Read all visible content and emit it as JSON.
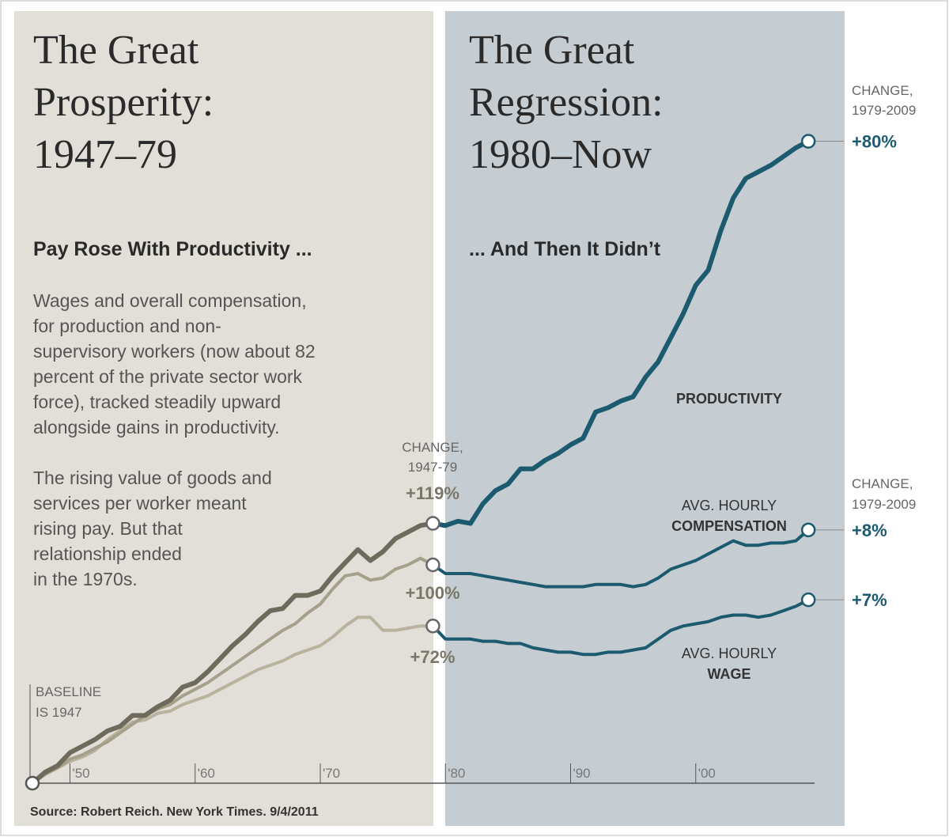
{
  "chart_data": {
    "type": "line",
    "panels": [
      {
        "title_lines": [
          "The Great",
          "Prosperity:",
          "1947–79"
        ],
        "subtitle": "Pay Rose With Productivity ...",
        "xlim": [
          1947,
          1979
        ],
        "body": [
          [
            "Wages and overall compensation,",
            "for production and non-",
            "supervisory workers (now about 82",
            "percent of the private sector work",
            "force), tracked steadily upward",
            "alongside gains in productivity."
          ],
          [
            "The rising value of goods and",
            "services per worker meant",
            "rising pay. But that",
            "relationship ended",
            "in the 1970s."
          ]
        ],
        "change_heading": [
          "CHANGE,",
          "1947-79"
        ],
        "change_labels": [
          "+119%",
          "+100%",
          "+72%"
        ]
      },
      {
        "title_lines": [
          "The Great",
          "Regression:",
          "1980–Now"
        ],
        "subtitle": "... And Then It Didn’t",
        "xlim": [
          1979,
          2009
        ],
        "change_heading": [
          "CHANGE,",
          "1979-2009"
        ],
        "change_labels": [
          "+80%",
          "+8%",
          "+7%"
        ]
      }
    ],
    "baseline_note": [
      "BASELINE",
      "IS 1947"
    ],
    "source": "Source: Robert Reich. New York Times. 9/4/2011",
    "x": [
      1947,
      1948,
      1949,
      1950,
      1951,
      1952,
      1953,
      1954,
      1955,
      1956,
      1957,
      1958,
      1959,
      1960,
      1961,
      1962,
      1963,
      1964,
      1965,
      1966,
      1967,
      1968,
      1969,
      1970,
      1971,
      1972,
      1973,
      1974,
      1975,
      1976,
      1977,
      1978,
      1979,
      1980,
      1981,
      1982,
      1983,
      1984,
      1985,
      1986,
      1987,
      1988,
      1989,
      1990,
      1991,
      1992,
      1993,
      1994,
      1995,
      1996,
      1997,
      1998,
      1999,
      2000,
      2001,
      2002,
      2003,
      2004,
      2005,
      2006,
      2007,
      2008,
      2009
    ],
    "series": [
      {
        "name_lines": [
          "PRODUCTIVITY"
        ],
        "colors": [
          "#6e6a5c",
          "#1c5a70"
        ],
        "width": 6,
        "values": [
          0,
          5,
          8,
          14,
          17,
          20,
          24,
          26,
          31,
          31,
          35,
          38,
          44,
          46,
          51,
          57,
          63,
          68,
          74,
          79,
          80,
          86,
          86,
          88,
          95,
          101,
          107,
          102,
          106,
          112,
          115,
          118,
          119,
          118,
          120,
          119,
          128,
          134,
          137,
          144,
          144,
          148,
          151,
          155,
          158,
          170,
          172,
          175,
          177,
          186,
          193,
          204,
          215,
          228,
          235,
          253,
          268,
          277,
          280,
          283,
          287,
          291,
          294
        ]
      },
      {
        "name_lines": [
          "AVG. HOURLY",
          "COMPENSATION"
        ],
        "colors": [
          "#a59f8b",
          "#1c5a70"
        ],
        "width": 4,
        "values": [
          0,
          4,
          7,
          11,
          13,
          16,
          19,
          23,
          27,
          31,
          34,
          36,
          40,
          43,
          46,
          50,
          54,
          58,
          62,
          66,
          70,
          73,
          78,
          82,
          89,
          95,
          96,
          93,
          94,
          98,
          100,
          103,
          100,
          96,
          96,
          96,
          95,
          94,
          93,
          92,
          91,
          90,
          90,
          90,
          90,
          91,
          91,
          91,
          90,
          91,
          94,
          98,
          100,
          102,
          105,
          108,
          111,
          109,
          109,
          110,
          110,
          111,
          116
        ]
      },
      {
        "name_lines": [
          "AVG. HOURLY",
          "WAGE"
        ],
        "colors": [
          "#b8b29e",
          "#1c5a70"
        ],
        "width": 4,
        "values": [
          0,
          5,
          7,
          10,
          12,
          15,
          20,
          24,
          28,
          29,
          32,
          33,
          36,
          38,
          40,
          43,
          46,
          49,
          52,
          54,
          56,
          59,
          61,
          63,
          67,
          72,
          76,
          76,
          70,
          70,
          71,
          72,
          72,
          66,
          66,
          66,
          65,
          65,
          64,
          64,
          62,
          61,
          60,
          60,
          59,
          59,
          60,
          60,
          61,
          62,
          66,
          70,
          72,
          73,
          74,
          76,
          77,
          77,
          76,
          77,
          79,
          81,
          84
        ]
      }
    ],
    "xlim": [
      1947,
      2010
    ],
    "ylim": [
      0,
      300
    ],
    "xticks": [
      {
        "value": 1950,
        "label": "'50"
      },
      {
        "value": 1960,
        "label": "'60"
      },
      {
        "value": 1970,
        "label": "'70"
      },
      {
        "value": 1980,
        "label": "'80"
      },
      {
        "value": 1990,
        "label": "'90"
      },
      {
        "value": 2000,
        "label": "'00"
      }
    ]
  }
}
